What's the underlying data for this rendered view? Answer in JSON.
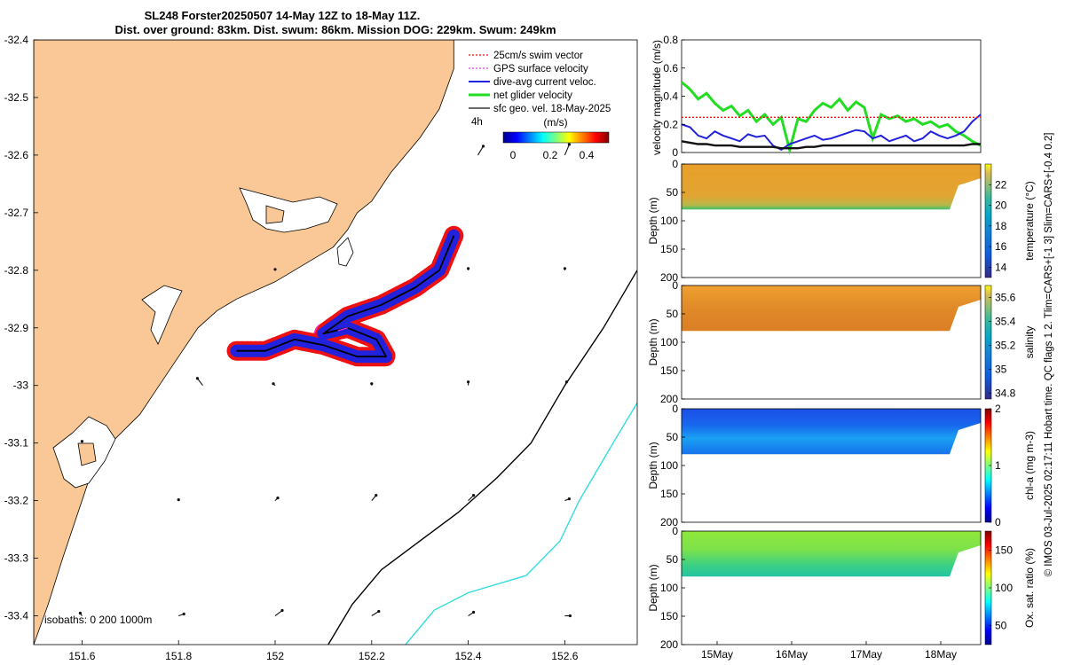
{
  "title": {
    "line1": "SL248 Forster20250507 14-May 12Z to 18-May 11Z.",
    "line2": "Dist. over ground: 83km. Dist. swum: 86km. Mission DOG: 229km. Swum: 249km"
  },
  "side_info": "© IMOS 03-Jul-2025 02:17:11 Hobart time. QC flags 1  2. Tlim=CARS+[-1 3] Slim=CARS+[-0.4 0.2]",
  "colors": {
    "land": "#f9c896",
    "swim": "#ee1111",
    "gps": "#ee33ee",
    "dive_avg": "#2222dd",
    "net": "#22dd22",
    "sfc_geo": "#111111",
    "isobath_200": "#000000",
    "isobath_1000": "#33dddd"
  },
  "map": {
    "legend": {
      "swim": "25cm/s swim vector",
      "gps": "GPS surface velocity",
      "dive": "dive-avg current veloc.",
      "net": "net glider velocity",
      "sfc": "sfc geo. vel. 18-May-2025"
    },
    "interval": "4h",
    "cbar_title": "(m/s)",
    "cbar_ticks": [
      "0",
      "0.2",
      "0.4"
    ],
    "isobath_label": "isobaths: 0   200  1000m"
  },
  "chart_data": [
    {
      "type": "map",
      "xlim": [
        151.5,
        152.75
      ],
      "ylim": [
        -33.45,
        -32.4
      ],
      "xticks": [
        151.6,
        151.8,
        152,
        152.2,
        152.4,
        152.6
      ],
      "xtick_labels": [
        "151.6",
        "151.8",
        "152",
        "152.2",
        "152.4",
        "152.6"
      ],
      "yticks": [
        -32.4,
        -32.5,
        -32.6,
        -32.7,
        -32.8,
        -32.9,
        -33,
        -33.1,
        -33.2,
        -33.3,
        -33.4
      ],
      "ytick_labels": [
        "-32.4",
        "-32.5",
        "-32.6",
        "-32.7",
        "-32.8",
        "-32.9",
        "-33",
        "-33.1",
        "-33.2",
        "-33.3",
        "-33.4"
      ],
      "coast": [
        [
          151.5,
          -32.4
        ],
        [
          152.37,
          -32.4
        ],
        [
          152.37,
          -32.45
        ],
        [
          152.34,
          -32.52
        ],
        [
          152.3,
          -32.57
        ],
        [
          152.24,
          -32.63
        ],
        [
          152.2,
          -32.68
        ],
        [
          152.17,
          -32.7
        ],
        [
          152.15,
          -32.73
        ],
        [
          152.12,
          -32.76
        ],
        [
          152.08,
          -32.78
        ],
        [
          152.0,
          -32.82
        ],
        [
          151.92,
          -32.85
        ],
        [
          151.88,
          -32.87
        ],
        [
          151.84,
          -32.9
        ],
        [
          151.8,
          -32.95
        ],
        [
          151.76,
          -33.0
        ],
        [
          151.72,
          -33.05
        ],
        [
          151.66,
          -33.1
        ],
        [
          151.62,
          -33.15
        ],
        [
          151.6,
          -33.2
        ],
        [
          151.58,
          -33.25
        ],
        [
          151.56,
          -33.3
        ],
        [
          151.53,
          -33.38
        ],
        [
          151.5,
          -33.45
        ]
      ],
      "isobath_200": [
        [
          152.75,
          -32.8
        ],
        [
          152.68,
          -32.9
        ],
        [
          152.6,
          -33.0
        ],
        [
          152.53,
          -33.1
        ],
        [
          152.46,
          -33.16
        ],
        [
          152.38,
          -33.22
        ],
        [
          152.3,
          -33.27
        ],
        [
          152.22,
          -33.32
        ],
        [
          152.16,
          -33.38
        ],
        [
          152.11,
          -33.45
        ]
      ],
      "isobath_1000": [
        [
          152.75,
          -33.03
        ],
        [
          152.7,
          -33.1
        ],
        [
          152.63,
          -33.2
        ],
        [
          152.59,
          -33.27
        ],
        [
          152.52,
          -33.33
        ],
        [
          152.4,
          -33.36
        ],
        [
          152.33,
          -33.39
        ],
        [
          152.27,
          -33.45
        ]
      ],
      "track": [
        [
          151.92,
          -32.94
        ],
        [
          151.98,
          -32.94
        ],
        [
          152.04,
          -32.92
        ],
        [
          152.1,
          -32.93
        ],
        [
          152.17,
          -32.95
        ],
        [
          152.23,
          -32.95
        ],
        [
          152.21,
          -32.92
        ],
        [
          152.15,
          -32.9
        ],
        [
          152.1,
          -32.91
        ],
        [
          152.15,
          -32.88
        ],
        [
          152.22,
          -32.86
        ],
        [
          152.29,
          -32.83
        ],
        [
          152.34,
          -32.8
        ],
        [
          152.37,
          -32.74
        ]
      ],
      "title": "SL248 Forster20250507 14-May 12Z to 18-May 11Z."
    },
    {
      "type": "line",
      "ylabel": "velocity magnitude (m/s)",
      "ylim": [
        0,
        0.8
      ],
      "yticks": [
        "0",
        "0.2",
        "0.4",
        "0.6",
        "0.8"
      ],
      "series": [
        {
          "name": "net glider velocity",
          "values": [
            0.5,
            0.45,
            0.38,
            0.42,
            0.35,
            0.3,
            0.33,
            0.26,
            0.3,
            0.22,
            0.27,
            0.2,
            0.25,
            0.02,
            0.24,
            0.22,
            0.3,
            0.35,
            0.32,
            0.38,
            0.3,
            0.36,
            0.32,
            0.1,
            0.27,
            0.24,
            0.26,
            0.22,
            0.24,
            0.2,
            0.22,
            0.18,
            0.2,
            0.15,
            0.12,
            0.08,
            0.05
          ]
        },
        {
          "name": "dive-avg current veloc.",
          "values": [
            0.2,
            0.18,
            0.12,
            0.1,
            0.15,
            0.12,
            0.1,
            0.08,
            0.13,
            0.11,
            0.12,
            0.05,
            0.02,
            0.06,
            0.08,
            0.1,
            0.12,
            0.09,
            0.1,
            0.12,
            0.14,
            0.16,
            0.15,
            0.1,
            0.12,
            0.08,
            0.1,
            0.12,
            0.08,
            0.1,
            0.15,
            0.12,
            0.1,
            0.12,
            0.15,
            0.22,
            0.27
          ]
        },
        {
          "name": "sfc geo. vel.",
          "values": [
            0.08,
            0.07,
            0.06,
            0.06,
            0.05,
            0.05,
            0.05,
            0.04,
            0.04,
            0.04,
            0.04,
            0.04,
            0.03,
            0.03,
            0.03,
            0.04,
            0.04,
            0.05,
            0.05,
            0.05,
            0.05,
            0.05,
            0.05,
            0.05,
            0.05,
            0.05,
            0.05,
            0.05,
            0.05,
            0.05,
            0.05,
            0.05,
            0.05,
            0.05,
            0.05,
            0.06,
            0.06
          ]
        },
        {
          "name": "25cm/s swim vector",
          "values": [
            0.25,
            0.25,
            0.25,
            0.25,
            0.25,
            0.25,
            0.25,
            0.25,
            0.25,
            0.25,
            0.25,
            0.25,
            0.25,
            0.25,
            0.25,
            0.25,
            0.25,
            0.25,
            0.25,
            0.25,
            0.25,
            0.25,
            0.25,
            0.25,
            0.25,
            0.25,
            0.25,
            0.25,
            0.25,
            0.25,
            0.25,
            0.25,
            0.25,
            0.25,
            0.25,
            0.25,
            0.25
          ]
        }
      ]
    },
    {
      "type": "heatmap",
      "ylabel": "Depth (m)",
      "ylim": [
        0,
        200
      ],
      "yticks": [
        "0",
        "50",
        "100",
        "150",
        "200"
      ],
      "cbar_label": "temperature (°C)",
      "cbar_ticks": [
        "14",
        "16",
        "18",
        "20",
        "22"
      ],
      "cbar_range": [
        13,
        24
      ]
    },
    {
      "type": "heatmap",
      "ylabel": "Depth (m)",
      "ylim": [
        0,
        200
      ],
      "yticks": [
        "0",
        "50",
        "100",
        "150",
        "200"
      ],
      "cbar_label": "salinity",
      "cbar_ticks": [
        "34.8",
        "35",
        "35.2",
        "35.4",
        "35.6"
      ],
      "cbar_range": [
        34.75,
        35.7
      ]
    },
    {
      "type": "heatmap",
      "ylabel": "Depth (m)",
      "ylim": [
        0,
        200
      ],
      "yticks": [
        "0",
        "50",
        "100",
        "150",
        "200"
      ],
      "cbar_label": "chl-a (mg m-3)",
      "cbar_ticks": [
        "0",
        "1",
        "2"
      ],
      "cbar_range": [
        0,
        2
      ]
    },
    {
      "type": "heatmap",
      "ylabel": "Depth (m)",
      "ylim": [
        0,
        200
      ],
      "yticks": [
        "0",
        "50",
        "100",
        "150",
        "200"
      ],
      "cbar_label": "Ox. sat. ratio (%)",
      "cbar_ticks": [
        "50",
        "100",
        "150"
      ],
      "cbar_range": [
        25,
        175
      ],
      "xtick_labels": [
        "15May",
        "16May",
        "17May",
        "18May"
      ]
    }
  ]
}
